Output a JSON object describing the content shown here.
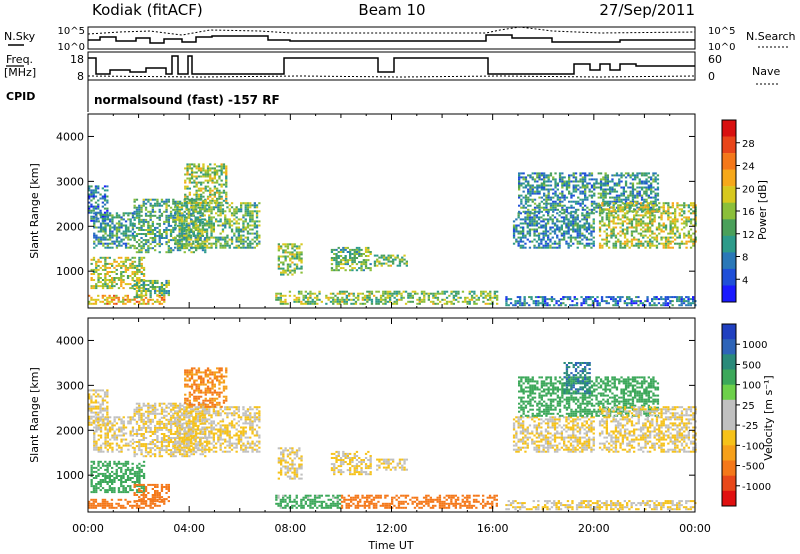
{
  "header": {
    "site": "Kodiak (fitACF)",
    "beam": "Beam 10",
    "date": "27/Sep/2011"
  },
  "status_panel": {
    "nsky_label": "N.Sky",
    "nsearch_label": "N.Search",
    "freq_label_1": "Freq.",
    "freq_label_2": "[MHz]",
    "nave_label": "Nave",
    "cpid_label": "CPID",
    "noise_ticks": [
      "10^5",
      "10^0"
    ],
    "freq_ticks": [
      "18",
      "8"
    ],
    "nave_ticks": [
      "60",
      "0"
    ],
    "mode_text": "normalsound (fast) -157 RF"
  },
  "chart_data": [
    {
      "type": "heatmap",
      "name": "power",
      "ylabel": "Slant Range [km]",
      "xlabel": "",
      "x_ticks": [
        "00:00",
        "04:00",
        "08:00",
        "12:00",
        "16:00",
        "20:00",
        "00:00"
      ],
      "x_range_hours": [
        0,
        24
      ],
      "y_ticks": [
        1000,
        2000,
        3000,
        4000
      ],
      "ylim": [
        180,
        4500
      ],
      "colorbar": {
        "label": "Power [dB]",
        "ticks": [
          "4",
          "8",
          "12",
          "16",
          "20",
          "24",
          "28"
        ],
        "range": [
          0,
          32
        ],
        "colors": [
          "#1a1aff",
          "#1f4fd8",
          "#2a78b8",
          "#2d9b8a",
          "#4aa05a",
          "#8bbf3a",
          "#d7c81e",
          "#f6a81a",
          "#f4781a",
          "#e8451a",
          "#d81010"
        ]
      },
      "regions": [
        {
          "t0": 0.0,
          "t1": 3.0,
          "r0": 250,
          "r1": 450,
          "p": 22
        },
        {
          "t0": 0.1,
          "t1": 2.2,
          "r0": 600,
          "r1": 1300,
          "p": 17
        },
        {
          "t0": 0.2,
          "t1": 1.8,
          "r0": 1500,
          "r1": 2300,
          "p": 11
        },
        {
          "t0": 0.0,
          "t1": 0.8,
          "r0": 2100,
          "r1": 2900,
          "p": 8
        },
        {
          "t0": 1.8,
          "t1": 4.6,
          "r0": 1400,
          "r1": 2600,
          "p": 12
        },
        {
          "t0": 3.4,
          "t1": 6.8,
          "r0": 1500,
          "r1": 2500,
          "p": 14
        },
        {
          "t0": 3.8,
          "t1": 5.5,
          "r0": 2500,
          "r1": 3400,
          "p": 16
        },
        {
          "t0": 1.8,
          "t1": 3.2,
          "r0": 400,
          "r1": 800,
          "p": 14
        },
        {
          "t0": 7.4,
          "t1": 16.2,
          "r0": 250,
          "r1": 550,
          "p": 15
        },
        {
          "t0": 7.5,
          "t1": 8.4,
          "r0": 900,
          "r1": 1600,
          "p": 16
        },
        {
          "t0": 9.6,
          "t1": 11.2,
          "r0": 1000,
          "r1": 1500,
          "p": 13
        },
        {
          "t0": 11.3,
          "t1": 12.6,
          "r0": 1100,
          "r1": 1350,
          "p": 15
        },
        {
          "t0": 16.8,
          "t1": 20.0,
          "r0": 1500,
          "r1": 2300,
          "p": 9
        },
        {
          "t0": 17.0,
          "t1": 22.5,
          "r0": 2300,
          "r1": 3200,
          "p": 10
        },
        {
          "t0": 20.2,
          "t1": 24.0,
          "r0": 1500,
          "r1": 2500,
          "p": 17
        },
        {
          "t0": 16.5,
          "t1": 24.0,
          "r0": 220,
          "r1": 420,
          "p": 7
        }
      ]
    },
    {
      "type": "heatmap",
      "name": "velocity",
      "ylabel": "Slant Range [km]",
      "xlabel": "Time UT",
      "x_ticks": [
        "00:00",
        "04:00",
        "08:00",
        "12:00",
        "16:00",
        "20:00",
        "00:00"
      ],
      "x_range_hours": [
        0,
        24
      ],
      "y_ticks": [
        1000,
        2000,
        3000,
        4000
      ],
      "ylim": [
        180,
        4500
      ],
      "colorbar": {
        "label": "Velocity [m s⁻¹]",
        "ticks": [
          "1000",
          "500",
          "100",
          "25",
          "-25",
          "-100",
          "-500",
          "-1000"
        ],
        "colors": [
          "#2040c0",
          "#2e64b8",
          "#2a8a7a",
          "#3ca85a",
          "#6dd04a",
          "#c0c0c0",
          "#c0c0c0",
          "#f6c21a",
          "#f6a01a",
          "#f4781a",
          "#e8481a",
          "#e01010"
        ]
      },
      "regions": [
        {
          "t0": 0.0,
          "t1": 3.0,
          "r0": 250,
          "r1": 450,
          "v": -200
        },
        {
          "t0": 0.1,
          "t1": 2.2,
          "r0": 600,
          "r1": 1300,
          "v": 200
        },
        {
          "t0": 0.2,
          "t1": 1.8,
          "r0": 1500,
          "r1": 2300,
          "v": 0
        },
        {
          "t0": 0.0,
          "t1": 0.8,
          "r0": 2100,
          "r1": 2900,
          "v": 0
        },
        {
          "t0": 1.8,
          "t1": 4.6,
          "r0": 1400,
          "r1": 2600,
          "v": 0
        },
        {
          "t0": 3.4,
          "t1": 6.8,
          "r0": 1500,
          "r1": 2500,
          "v": 0
        },
        {
          "t0": 3.8,
          "t1": 5.5,
          "r0": 2500,
          "r1": 3400,
          "v": -100
        },
        {
          "t0": 1.8,
          "t1": 3.2,
          "r0": 400,
          "r1": 800,
          "v": -300
        },
        {
          "t0": 7.4,
          "t1": 10.0,
          "r0": 250,
          "r1": 550,
          "v": 150
        },
        {
          "t0": 10.0,
          "t1": 16.2,
          "r0": 250,
          "r1": 550,
          "v": -300
        },
        {
          "t0": 7.5,
          "t1": 8.4,
          "r0": 900,
          "r1": 1600,
          "v": 0
        },
        {
          "t0": 9.6,
          "t1": 11.2,
          "r0": 1000,
          "r1": 1500,
          "v": 0
        },
        {
          "t0": 11.3,
          "t1": 12.6,
          "r0": 1100,
          "r1": 1350,
          "v": 0
        },
        {
          "t0": 16.8,
          "t1": 20.0,
          "r0": 1500,
          "r1": 2300,
          "v": 0
        },
        {
          "t0": 17.0,
          "t1": 22.5,
          "r0": 2300,
          "r1": 3200,
          "v": 300
        },
        {
          "t0": 20.2,
          "t1": 24.0,
          "r0": 1500,
          "r1": 2500,
          "v": 0
        },
        {
          "t0": 18.8,
          "t1": 19.8,
          "r0": 2800,
          "r1": 3500,
          "v": 900
        },
        {
          "t0": 16.5,
          "t1": 24.0,
          "r0": 220,
          "r1": 420,
          "v": 0
        }
      ]
    }
  ]
}
